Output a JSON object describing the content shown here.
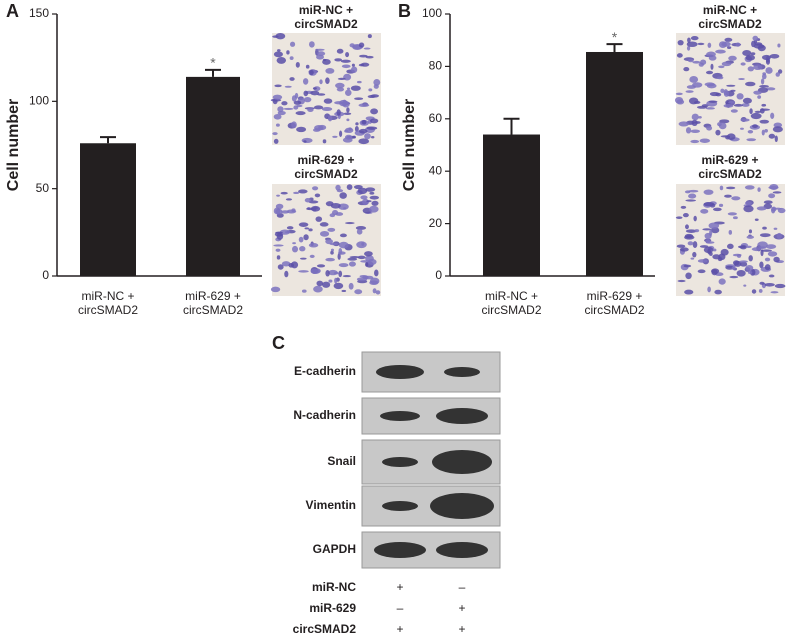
{
  "chart_data": [
    {
      "type": "bar",
      "panel": "A",
      "ylabel": "Cell number",
      "categories": [
        "miR-NC + circSMAD2",
        "miR-629 + circSMAD2"
      ],
      "values": [
        76,
        114
      ],
      "errors": [
        3.5,
        4
      ],
      "value_annotations": [
        null,
        "*"
      ],
      "color": "#231f20",
      "ylim": [
        0,
        150
      ],
      "yticks": [
        0,
        50,
        100,
        150
      ],
      "micrograph_labels": [
        "miR-NC + circSMAD2",
        "miR-629 + circSMAD2"
      ]
    },
    {
      "type": "bar",
      "panel": "B",
      "ylabel": "Cell number",
      "categories": [
        "miR-NC + circSMAD2",
        "miR-629 + circSMAD2"
      ],
      "values": [
        54,
        85.5
      ],
      "errors": [
        6,
        3
      ],
      "value_annotations": [
        null,
        "*"
      ],
      "color": "#231f20",
      "ylim": [
        0,
        100
      ],
      "yticks": [
        0,
        20,
        40,
        60,
        80,
        100
      ],
      "micrograph_labels": [
        "miR-NC + circSMAD2",
        "miR-629 + circSMAD2"
      ]
    }
  ],
  "blot": {
    "panel": "C",
    "proteins": [
      "E-cadherin",
      "N-cadherin",
      "Snail",
      "Vimentin",
      "GAPDH"
    ],
    "conditions": [
      {
        "name": "miR-NC",
        "marks": [
          "+",
          "–"
        ]
      },
      {
        "name": "miR-629",
        "marks": [
          "–",
          "+"
        ]
      },
      {
        "name": "circSMAD2",
        "marks": [
          "+",
          "+"
        ]
      }
    ]
  }
}
